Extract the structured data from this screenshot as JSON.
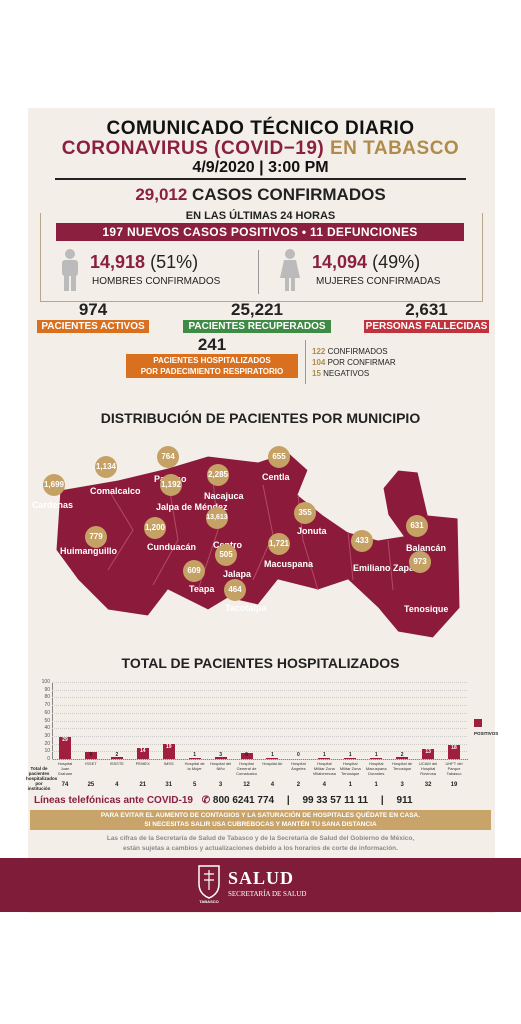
{
  "header": {
    "title": "COMUNICADO TÉCNICO DIARIO",
    "subtitle_maroon": "CORONAVIRUS (COVID−19)",
    "subtitle_gold": "EN TABASCO",
    "date": "4/9/2020",
    "sep": "|",
    "time": "3:00 PM"
  },
  "confirmed": {
    "number": "29,012",
    "label": "CASOS CONFIRMADOS",
    "last24": "EN LAS ÚLTIMAS 24 HORAS",
    "banner": "197 NUEVOS CASOS POSITIVOS  •  11 DEFUNCIONES"
  },
  "gender": {
    "men_number": "14,918",
    "men_pct": "(51%)",
    "men_label": "HOMBRES CONFIRMADOS",
    "women_number": "14,094",
    "women_pct": "(49%)",
    "women_label": "MUJERES CONFIRMADAS"
  },
  "stats": {
    "active_number": "974",
    "active_label": "PACIENTES ACTIVOS",
    "recovered_number": "25,221",
    "recovered_label": "PACIENTES RECUPERADOS",
    "deaths_number": "2,631",
    "deaths_label": "PERSONAS FALLECIDAS",
    "hosp_number": "241",
    "hosp_label_1": "PACIENTES HOSPITALIZADOS",
    "hosp_label_2": "POR PADECIMIENTO RESPIRATORIO",
    "hosp_c_num": "122",
    "hosp_c_lbl": "CONFIRMADOS",
    "hosp_p_num": "104",
    "hosp_p_lbl": "POR CONFIRMAR",
    "hosp_n_num": "15",
    "hosp_n_lbl": "NEGATIVOS"
  },
  "map": {
    "title": "DISTRIBUCIÓN DE PACIENTES POR MUNICIPIO",
    "municipios": [
      {
        "name": "Cardenas",
        "value": "1,699"
      },
      {
        "name": "Comalcalco",
        "value": "1,134"
      },
      {
        "name": "Paraíso",
        "value": "764"
      },
      {
        "name": "Jalpa de Méndez",
        "value": "1,192"
      },
      {
        "name": "Nacajuca",
        "value": "2,285"
      },
      {
        "name": "Centla",
        "value": "655"
      },
      {
        "name": "Huimanguillo",
        "value": "779"
      },
      {
        "name": "Cunduacán",
        "value": "1,200"
      },
      {
        "name": "Centro",
        "value": "13,613"
      },
      {
        "name": "Jonuta",
        "value": "355"
      },
      {
        "name": "Balancán",
        "value": "631"
      },
      {
        "name": "Macuspana",
        "value": "1,721"
      },
      {
        "name": "Emiliano Zapata",
        "value": "433"
      },
      {
        "name": "Jalapa",
        "value": "505"
      },
      {
        "name": "Teapa",
        "value": "609"
      },
      {
        "name": "Tacotalpa",
        "value": "464"
      },
      {
        "name": "Tenosique",
        "value": "973"
      }
    ]
  },
  "hospital_chart": {
    "title": "TOTAL DE PACIENTES HOSPITALIZADOS",
    "total_label_1": "Total de",
    "total_label_2": "pacientes",
    "total_label_3": "hospitalizados",
    "total_label_4": "por institución",
    "legend": "POSITIVOS"
  },
  "chart_data": {
    "type": "bar",
    "categories": [
      "Hospital Juan Graham",
      "ISSET",
      "ISSSTE",
      "PEMEX",
      "IMSS",
      "Hospital de la Mujer",
      "Hospital del Niño",
      "Hospital General de Comalcalco",
      "Hospital Air",
      "Hospital Ángeles",
      "Hospital Militar Zona Villahermosa",
      "Hospital Militar Zona Tenosique",
      "Hospital Macuspana Dorantes",
      "Hospital de Tenosique",
      "UCAM del Hospital Rovirosa",
      "UHFT del Parque Tabasco"
    ],
    "series": [
      {
        "name": "POSITIVOS",
        "values": [
          29,
          9,
          2,
          14,
          19,
          1,
          3,
          8,
          1,
          0,
          1,
          1,
          1,
          2,
          13,
          18
        ]
      }
    ],
    "totals": [
      74,
      25,
      4,
      21,
      31,
      5,
      3,
      12,
      4,
      2,
      4,
      1,
      1,
      3,
      32,
      19
    ],
    "yticks": [
      "100",
      "90",
      "80",
      "70",
      "60",
      "50",
      "40",
      "30",
      "20",
      "10",
      "0"
    ],
    "ylim": [
      0,
      100
    ],
    "legend_position": "right"
  },
  "contact": {
    "label": "Líneas telefónicas ante COVID-19",
    "phone1": "800 6241 774",
    "sep": "|",
    "phone2": "99 33 57 11 11",
    "phone3": "911"
  },
  "notice": {
    "line1": "PARA EVITAR EL AUMENTO DE CONTAGIOS Y LA SATURACIÓN DE HOSPITALES QUÉDATE EN CASA.",
    "line2": "SI NECESITAS SALIR USA CUBREBOCAS Y MANTÉN TU SANA DISTANCIA"
  },
  "disclaimer": {
    "line1": "Las cifras de la Secretaría de Salud de Tabasco y de la Secretaría de Salud del Gobierno de México,",
    "line2": "están sujetas a cambios y actualizaciones debido a los horarios de corte de información."
  },
  "footer": {
    "brand": "SALUD",
    "sub": "SECRETARÍA DE SALUD",
    "seal_text": "TABASCO"
  },
  "colors": {
    "maroon": "#8a1f3f",
    "gold": "#b08b4b",
    "orange": "#d9701f",
    "green": "#3f8a45",
    "red": "#c0323c",
    "map": "#8c1b3b"
  }
}
